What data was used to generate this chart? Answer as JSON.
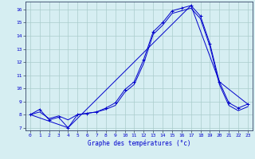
{
  "xlabel": "Graphe des températures (°c)",
  "background_color": "#d6eef2",
  "grid_color": "#aacccc",
  "line_color": "#0000cc",
  "xlim": [
    -0.5,
    23.5
  ],
  "ylim": [
    6.8,
    16.6
  ],
  "yticks": [
    7,
    8,
    9,
    10,
    11,
    12,
    13,
    14,
    15,
    16
  ],
  "xticks": [
    0,
    1,
    2,
    3,
    4,
    5,
    6,
    7,
    8,
    9,
    10,
    11,
    12,
    13,
    14,
    15,
    16,
    17,
    18,
    19,
    20,
    21,
    22,
    23
  ],
  "series1_x": [
    0,
    1,
    2,
    3,
    4,
    5,
    6,
    7,
    8,
    9,
    10,
    11,
    12,
    13,
    14,
    15,
    16,
    17,
    18,
    19,
    20,
    21,
    22,
    23
  ],
  "series1_y": [
    8.0,
    8.4,
    7.6,
    7.8,
    7.0,
    8.0,
    8.1,
    8.2,
    8.5,
    8.9,
    9.9,
    10.5,
    12.2,
    14.3,
    15.0,
    15.9,
    16.1,
    16.3,
    15.5,
    13.4,
    10.5,
    8.9,
    8.5,
    8.8
  ],
  "series2_x": [
    0,
    1,
    2,
    3,
    4,
    5,
    6,
    7,
    8,
    9,
    10,
    11,
    12,
    13,
    14,
    15,
    16,
    17,
    18,
    19,
    20,
    21,
    22,
    23
  ],
  "series2_y": [
    8.0,
    8.2,
    7.7,
    7.9,
    7.6,
    8.0,
    8.1,
    8.2,
    8.4,
    8.7,
    9.7,
    10.3,
    11.9,
    14.1,
    14.8,
    15.7,
    15.9,
    16.1,
    15.3,
    13.2,
    10.3,
    8.7,
    8.3,
    8.6
  ],
  "series3_x": [
    0,
    4,
    17,
    20,
    23
  ],
  "series3_y": [
    8.0,
    7.0,
    16.3,
    10.5,
    8.8
  ]
}
